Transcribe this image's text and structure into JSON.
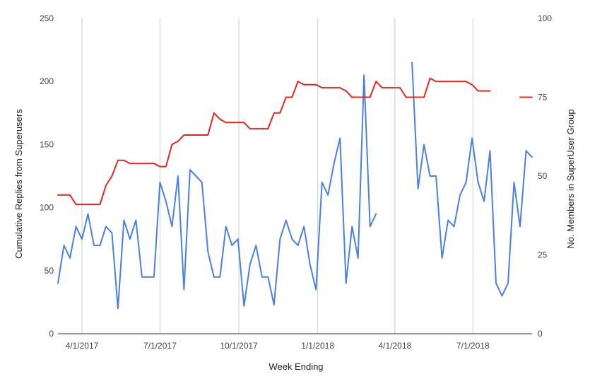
{
  "chart_data": {
    "type": "line",
    "xlabel": "Week Ending",
    "ylabel_left": "Cumulative Replies from Superusers",
    "ylabel_right": "No. Members in SuperUser Group",
    "ylim_left": [
      0,
      250
    ],
    "ylim_right": [
      0,
      100
    ],
    "yticks_left": [
      "0",
      "50",
      "100",
      "150",
      "200",
      "250"
    ],
    "yticks_right": [
      "0",
      "25",
      "50",
      "75",
      "100"
    ],
    "x_tick_labels": [
      "4/1/2017",
      "7/1/2017",
      "10/1/2017",
      "1/1/2018",
      "4/1/2018",
      "7/1/2018"
    ],
    "x_ticks": [
      "2017-04-01",
      "2017-07-01",
      "2017-10-01",
      "2018-01-01",
      "2018-04-01",
      "2018-07-01"
    ],
    "xlim": [
      "2017-03-04",
      "2018-09-08"
    ],
    "grid": "vertical",
    "legend": "none",
    "series": [
      {
        "axis": "left",
        "color": "#4a7fe3",
        "points": [
          [
            "2017-03-04",
            40
          ],
          [
            "2017-03-11",
            70
          ],
          [
            "2017-03-18",
            60
          ],
          [
            "2017-03-25",
            85
          ],
          [
            "2017-04-01",
            75
          ],
          [
            "2017-04-08",
            95
          ],
          [
            "2017-04-15",
            70
          ],
          [
            "2017-04-22",
            70
          ],
          [
            "2017-04-29",
            85
          ],
          [
            "2017-05-06",
            80
          ],
          [
            "2017-05-13",
            20
          ],
          [
            "2017-05-20",
            90
          ],
          [
            "2017-05-27",
            75
          ],
          [
            "2017-06-03",
            90
          ],
          [
            "2017-06-10",
            45
          ],
          [
            "2017-06-17",
            45
          ],
          [
            "2017-06-24",
            45
          ],
          [
            "2017-07-01",
            120
          ],
          [
            "2017-07-08",
            105
          ],
          [
            "2017-07-15",
            85
          ],
          [
            "2017-07-22",
            125
          ],
          [
            "2017-07-29",
            35
          ],
          [
            "2017-08-05",
            130
          ],
          [
            "2017-08-12",
            125
          ],
          [
            "2017-08-19",
            120
          ],
          [
            "2017-08-26",
            65
          ],
          [
            "2017-09-02",
            45
          ],
          [
            "2017-09-09",
            45
          ],
          [
            "2017-09-16",
            85
          ],
          [
            "2017-09-23",
            70
          ],
          [
            "2017-09-30",
            75
          ],
          [
            "2017-10-07",
            22
          ],
          [
            "2017-10-14",
            55
          ],
          [
            "2017-10-21",
            70
          ],
          [
            "2017-10-28",
            45
          ],
          [
            "2017-11-04",
            45
          ],
          [
            "2017-11-11",
            23
          ],
          [
            "2017-11-18",
            75
          ],
          [
            "2017-11-25",
            90
          ],
          [
            "2017-12-02",
            75
          ],
          [
            "2017-12-09",
            70
          ],
          [
            "2017-12-16",
            85
          ],
          [
            "2017-12-23",
            55
          ],
          [
            "2017-12-30",
            35
          ],
          [
            "2018-01-06",
            120
          ],
          [
            "2018-01-13",
            110
          ],
          [
            "2018-01-20",
            135
          ],
          [
            "2018-01-27",
            155
          ],
          [
            "2018-02-03",
            40
          ],
          [
            "2018-02-10",
            85
          ],
          [
            "2018-02-17",
            60
          ],
          [
            "2018-02-24",
            205
          ],
          [
            "2018-03-03",
            85
          ],
          [
            "2018-03-10",
            95
          ],
          null,
          [
            "2018-04-21",
            215
          ],
          [
            "2018-04-28",
            115
          ],
          [
            "2018-05-05",
            150
          ],
          [
            "2018-05-12",
            125
          ],
          [
            "2018-05-19",
            125
          ],
          [
            "2018-05-26",
            60
          ],
          [
            "2018-06-02",
            90
          ],
          [
            "2018-06-09",
            85
          ],
          [
            "2018-06-16",
            110
          ],
          [
            "2018-06-23",
            120
          ],
          [
            "2018-06-30",
            155
          ],
          [
            "2018-07-07",
            120
          ],
          [
            "2018-07-14",
            105
          ],
          [
            "2018-07-21",
            145
          ],
          [
            "2018-07-28",
            40
          ],
          [
            "2018-08-04",
            30
          ],
          [
            "2018-08-11",
            40
          ],
          [
            "2018-08-18",
            120
          ],
          [
            "2018-08-25",
            85
          ],
          [
            "2018-09-01",
            145
          ],
          [
            "2018-09-08",
            140
          ]
        ]
      },
      {
        "axis": "right",
        "color": "#e2281e",
        "points": [
          [
            "2017-03-04",
            44
          ],
          [
            "2017-03-11",
            44
          ],
          [
            "2017-03-18",
            44
          ],
          [
            "2017-03-25",
            41
          ],
          [
            "2017-04-01",
            41
          ],
          [
            "2017-04-08",
            41
          ],
          [
            "2017-04-15",
            41
          ],
          [
            "2017-04-22",
            41
          ],
          [
            "2017-04-29",
            47
          ],
          [
            "2017-05-06",
            50
          ],
          [
            "2017-05-13",
            55
          ],
          [
            "2017-05-20",
            55
          ],
          [
            "2017-05-27",
            54
          ],
          [
            "2017-06-03",
            54
          ],
          [
            "2017-06-10",
            54
          ],
          [
            "2017-06-17",
            54
          ],
          [
            "2017-06-24",
            54
          ],
          [
            "2017-07-01",
            53
          ],
          [
            "2017-07-08",
            53
          ],
          [
            "2017-07-15",
            60
          ],
          [
            "2017-07-22",
            61
          ],
          [
            "2017-07-29",
            63
          ],
          [
            "2017-08-05",
            63
          ],
          [
            "2017-08-12",
            63
          ],
          [
            "2017-08-19",
            63
          ],
          [
            "2017-08-26",
            63
          ],
          [
            "2017-09-02",
            70
          ],
          [
            "2017-09-09",
            68
          ],
          [
            "2017-09-16",
            67
          ],
          [
            "2017-09-23",
            67
          ],
          [
            "2017-09-30",
            67
          ],
          [
            "2017-10-07",
            67
          ],
          [
            "2017-10-14",
            65
          ],
          [
            "2017-10-21",
            65
          ],
          [
            "2017-10-28",
            65
          ],
          [
            "2017-11-04",
            65
          ],
          [
            "2017-11-11",
            70
          ],
          [
            "2017-11-18",
            70
          ],
          [
            "2017-11-25",
            75
          ],
          [
            "2017-12-02",
            75
          ],
          [
            "2017-12-09",
            80
          ],
          [
            "2017-12-16",
            79
          ],
          [
            "2017-12-23",
            79
          ],
          [
            "2017-12-30",
            79
          ],
          [
            "2018-01-06",
            78
          ],
          [
            "2018-01-13",
            78
          ],
          [
            "2018-01-20",
            78
          ],
          [
            "2018-01-27",
            78
          ],
          [
            "2018-02-03",
            77
          ],
          [
            "2018-02-10",
            75
          ],
          [
            "2018-02-17",
            75
          ],
          [
            "2018-02-24",
            75
          ],
          [
            "2018-03-03",
            75
          ],
          [
            "2018-03-10",
            80
          ],
          [
            "2018-03-17",
            78
          ],
          [
            "2018-03-24",
            78
          ],
          [
            "2018-03-31",
            78
          ],
          [
            "2018-04-07",
            78
          ],
          [
            "2018-04-14",
            75
          ],
          [
            "2018-04-21",
            75
          ],
          [
            "2018-04-28",
            75
          ],
          [
            "2018-05-05",
            75
          ],
          [
            "2018-05-12",
            81
          ],
          [
            "2018-05-19",
            80
          ],
          [
            "2018-05-26",
            80
          ],
          [
            "2018-06-02",
            80
          ],
          [
            "2018-06-09",
            80
          ],
          [
            "2018-06-16",
            80
          ],
          [
            "2018-06-23",
            80
          ],
          [
            "2018-06-30",
            79
          ],
          [
            "2018-07-07",
            77
          ],
          [
            "2018-07-14",
            77
          ],
          [
            "2018-07-21",
            77
          ],
          null,
          [
            "2018-08-25",
            75
          ],
          [
            "2018-09-01",
            75
          ],
          [
            "2018-09-08",
            75
          ]
        ]
      }
    ]
  }
}
